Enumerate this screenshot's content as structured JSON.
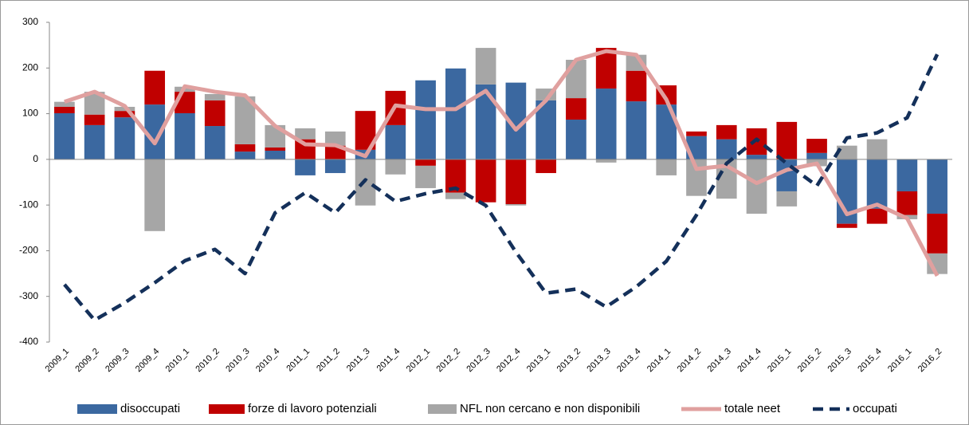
{
  "chart_data": {
    "type": "bar",
    "stacked": true,
    "categories": [
      "2009_1",
      "2009_2",
      "2009_3",
      "2009_4",
      "2010_1",
      "2010_2",
      "2010_3",
      "2010_4",
      "2011_1",
      "2011_2",
      "2011_3",
      "2011_4",
      "2012_1",
      "2012_2",
      "2012_3",
      "2012_4",
      "2013_1",
      "2013_2",
      "2013_3",
      "2013_4",
      "2014_1",
      "2014_2",
      "2014_3",
      "2014_4",
      "2015_1",
      "2015_2",
      "2015_3",
      "2015_4",
      "2016_1",
      "2016_2"
    ],
    "series": [
      {
        "name": "disoccupati",
        "type": "bar",
        "color": "#3b68a0",
        "values": [
          101,
          75,
          92,
          120,
          101,
          73,
          17,
          19,
          -35,
          -30,
          21,
          75,
          173,
          199,
          164,
          168,
          129,
          87,
          155,
          127,
          120,
          51,
          44,
          10,
          -70,
          14,
          -141,
          -108,
          -70,
          -119
        ]
      },
      {
        "name": "forze di lavoro potenziali",
        "type": "bar",
        "color": "#c00000",
        "values": [
          14,
          23,
          14,
          74,
          47,
          56,
          16,
          7,
          44,
          30,
          85,
          75,
          -14,
          -73,
          -94,
          -98,
          -30,
          47,
          89,
          67,
          42,
          10,
          31,
          58,
          82,
          31,
          -9,
          -33,
          -52,
          -87
        ]
      },
      {
        "name": "NFL non cercano e non disponibili",
        "type": "bar",
        "color": "#a6a6a6",
        "values": [
          11,
          50,
          9,
          -157,
          11,
          14,
          105,
          49,
          24,
          31,
          -101,
          -33,
          -49,
          -14,
          80,
          -3,
          26,
          84,
          -7,
          35,
          -35,
          -80,
          -86,
          -119,
          -33,
          -15,
          30,
          44,
          -9,
          -45
        ]
      },
      {
        "name": "totale neet",
        "type": "line",
        "color": "#e0a09f",
        "values": [
          126,
          148,
          117,
          35,
          160,
          148,
          140,
          73,
          33,
          31,
          7,
          118,
          110,
          110,
          150,
          65,
          129,
          218,
          237,
          229,
          131,
          -21,
          -14,
          -52,
          -23,
          -9,
          -120,
          -99,
          -129,
          -255
        ]
      },
      {
        "name": "occupati",
        "type": "line",
        "dashed": true,
        "color": "#14305a",
        "values": [
          -274,
          -352,
          -314,
          -270,
          -222,
          -197,
          -250,
          -117,
          -73,
          -117,
          -45,
          -92,
          -75,
          -63,
          -101,
          -203,
          -293,
          -284,
          -323,
          -279,
          -223,
          -122,
          -9,
          44,
          -9,
          -58,
          47,
          58,
          91,
          230
        ]
      }
    ],
    "ylim": [
      -400,
      300
    ],
    "yticks": [
      -400,
      -300,
      -200,
      -100,
      0,
      100,
      200,
      300
    ],
    "grid": false,
    "legend": "bottom"
  }
}
